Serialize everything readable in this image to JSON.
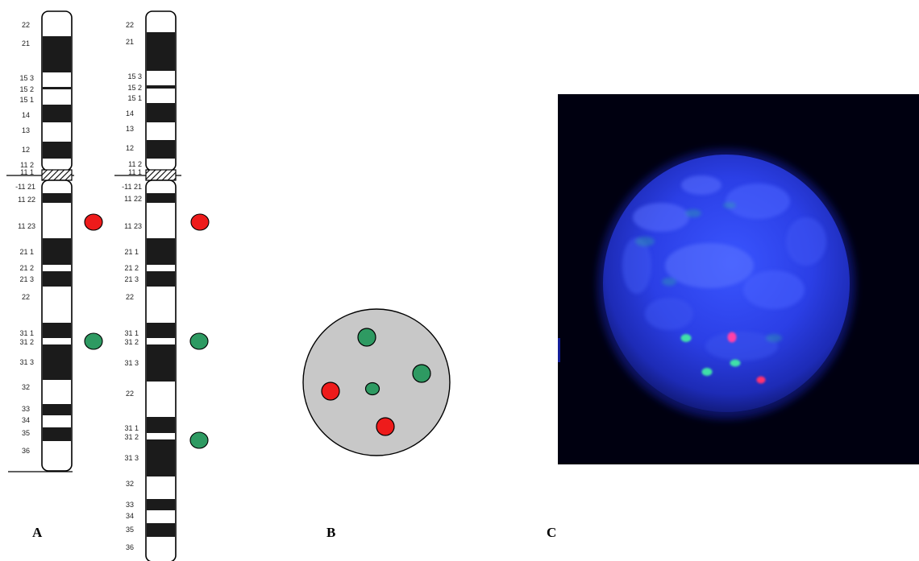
{
  "panels": {
    "a": "A",
    "b": "B",
    "c": "C"
  },
  "colors": {
    "dark_band": "#1b1b1b",
    "red_signal": "#ee1b1b",
    "green_signal": "#2e9a62",
    "nucleus_gray": "#c8c8c8",
    "fish_background": "#000010",
    "dapi_blue": "#2c3fe0"
  },
  "chromosome_normal": {
    "p_arm_labels": [
      "22",
      "21",
      "15 3",
      "15 2",
      "15 1",
      "14",
      "13",
      "12",
      "11 2",
      "11 1"
    ],
    "q_arm_labels": [
      "-11 21",
      "11 22",
      "11 23",
      "21 1",
      "21 2",
      "21 3",
      "22",
      "31 1",
      "31 2",
      "31 3",
      "32",
      "33",
      "34",
      "35",
      "36"
    ],
    "signals": [
      "red",
      "green"
    ]
  },
  "chromosome_duplicated": {
    "p_arm_labels": [
      "22",
      "21",
      "15 3",
      "15 2",
      "15 1",
      "14",
      "13",
      "12",
      "11 2",
      "11 1"
    ],
    "q_arm_labels": [
      "-11 21",
      "11 22",
      "11 23",
      "21 1",
      "21 2",
      "21 3",
      "22",
      "31 1",
      "31 2",
      "31 3",
      "22",
      "31 1",
      "31 2",
      "31 3",
      "32",
      "33",
      "34",
      "35",
      "36"
    ],
    "signals": [
      "red",
      "green",
      "green"
    ]
  },
  "nucleus_schematic": {
    "red_signals": 2,
    "green_signals": 3,
    "small_green_signals": 1
  },
  "fish_image": {
    "stain": "DAPI",
    "green_signals": 3,
    "red_signals": 2
  }
}
